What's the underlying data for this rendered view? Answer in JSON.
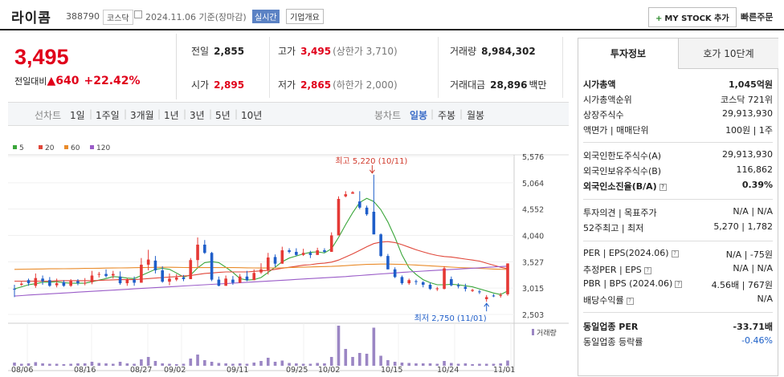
{
  "header": {
    "name": "라이콤",
    "code": "388790",
    "market": "코스닥",
    "date": "2024.11.06 기준(장마감)",
    "realtime": "실시간",
    "overview": "기업개요",
    "mystock": "MY STOCK 추가",
    "mystock_plus": "+",
    "quick_order": "빠른주문"
  },
  "price": {
    "current": "3,495",
    "change_label": "전일대비",
    "change_arrow": "▲",
    "change": "640",
    "change_pct": "+22.42%"
  },
  "quote": {
    "prev_label": "전일",
    "prev": "2,855",
    "high_label": "고가",
    "high": "3,495",
    "high_limit": "(상한가 3,710)",
    "volume_label": "거래량",
    "volume": "8,984,302",
    "open_label": "시가",
    "open": "2,895",
    "low_label": "저가",
    "low": "2,865",
    "low_limit": "(하한가 2,000)",
    "amount_label": "거래대금",
    "amount": "28,896",
    "amount_unit": "백만"
  },
  "period_tabs": {
    "label": "선차트",
    "items": [
      "1일",
      "1주일",
      "3개월",
      "1년",
      "3년",
      "5년",
      "10년"
    ]
  },
  "candle_tabs": {
    "label": "봉차트",
    "items": [
      "일봉",
      "주봉",
      "월봉"
    ],
    "selected": "일봉"
  },
  "legend": [
    {
      "name": "5",
      "color": "#3aa63a"
    },
    {
      "name": "20",
      "color": "#e0473a"
    },
    {
      "name": "60",
      "color": "#e98b2a"
    },
    {
      "name": "120",
      "color": "#9a5cc8"
    }
  ],
  "chart_data": {
    "type": "candlestick",
    "ylim": [
      2503,
      5576
    ],
    "yticks": [
      "5,576",
      "5,064",
      "4,552",
      "4,040",
      "3,527",
      "3,015",
      "2,503"
    ],
    "xticks": [
      "08/06",
      "08/16",
      "08/27",
      "09/02",
      "09/11",
      "09/25",
      "10/02",
      "10/15",
      "10/24",
      "11/01"
    ],
    "annotations": {
      "high": "최고 5,220 (10/11)",
      "low": "최저 2,750 (11/01)"
    },
    "volume_label": "거래량",
    "candles": [
      [
        3000,
        2990,
        2840,
        3080
      ],
      [
        3080,
        3100,
        3060,
        3140
      ],
      [
        3170,
        3110,
        3060,
        3200
      ],
      [
        3060,
        3210,
        3020,
        3300
      ],
      [
        3200,
        3150,
        3080,
        3260
      ],
      [
        3170,
        3060,
        3040,
        3230
      ],
      [
        3070,
        3110,
        3030,
        3200
      ],
      [
        3130,
        3060,
        3040,
        3170
      ],
      [
        3060,
        3150,
        3040,
        3190
      ],
      [
        3150,
        3110,
        3070,
        3190
      ],
      [
        3110,
        3120,
        3070,
        3210
      ],
      [
        3130,
        3260,
        3090,
        3350
      ],
      [
        3280,
        3290,
        3220,
        3330
      ],
      [
        3290,
        3250,
        3220,
        3380
      ],
      [
        3260,
        3290,
        3200,
        3350
      ],
      [
        3240,
        3110,
        3080,
        3340
      ],
      [
        3110,
        3180,
        3060,
        3210
      ],
      [
        3180,
        3120,
        3060,
        3240
      ],
      [
        3120,
        3470,
        3120,
        3600
      ],
      [
        3470,
        3570,
        3360,
        3760
      ],
      [
        3550,
        3360,
        3300,
        3640
      ],
      [
        3360,
        3140,
        3120,
        3440
      ],
      [
        3140,
        3200,
        3070,
        3300
      ],
      [
        3180,
        3220,
        3150,
        3290
      ],
      [
        3220,
        3190,
        3150,
        3270
      ],
      [
        3190,
        3560,
        3190,
        3600
      ],
      [
        3560,
        3860,
        3420,
        4000
      ],
      [
        3860,
        3700,
        3680,
        3950
      ],
      [
        3700,
        3180,
        3150,
        3720
      ],
      [
        3180,
        3060,
        3050,
        3240
      ],
      [
        3060,
        3200,
        3060,
        3260
      ],
      [
        3180,
        3120,
        3080,
        3250
      ],
      [
        3120,
        3240,
        3110,
        3290
      ],
      [
        3240,
        3170,
        3150,
        3350
      ],
      [
        3170,
        3310,
        3170,
        3380
      ],
      [
        3320,
        3380,
        3290,
        3500
      ],
      [
        3370,
        3610,
        3280,
        3700
      ],
      [
        3620,
        3490,
        3430,
        3670
      ],
      [
        3490,
        3750,
        3490,
        3820
      ],
      [
        3750,
        3720,
        3690,
        3790
      ],
      [
        3720,
        3660,
        3640,
        3790
      ],
      [
        3660,
        3700,
        3640,
        3780
      ],
      [
        3700,
        3660,
        3600,
        3740
      ],
      [
        3660,
        3750,
        3660,
        3800
      ],
      [
        3750,
        3720,
        3700,
        3790
      ],
      [
        3720,
        4040,
        3720,
        4100
      ],
      [
        4040,
        4750,
        4040,
        4800
      ],
      [
        4800,
        4840,
        4780,
        4900
      ],
      [
        4850,
        4880,
        4850,
        4900
      ],
      [
        4700,
        4580,
        4550,
        4900
      ],
      [
        4580,
        4450,
        4420,
        4620
      ],
      [
        4500,
        4060,
        4060,
        5220
      ],
      [
        4060,
        3640,
        3620,
        4080
      ],
      [
        3640,
        3380,
        3380,
        3680
      ],
      [
        3380,
        3230,
        3210,
        3420
      ],
      [
        3230,
        3110,
        3080,
        3260
      ],
      [
        3110,
        3170,
        3080,
        3200
      ],
      [
        3150,
        3140,
        3080,
        3180
      ],
      [
        3130,
        3080,
        3030,
        3150
      ],
      [
        3080,
        3000,
        2980,
        3120
      ],
      [
        3000,
        3010,
        2960,
        3040
      ],
      [
        3000,
        3400,
        2990,
        3440
      ],
      [
        3190,
        3070,
        3050,
        3240
      ],
      [
        3070,
        3050,
        3010,
        3110
      ],
      [
        3040,
        3000,
        2950,
        3100
      ],
      [
        2960,
        2980,
        2940,
        3000
      ],
      [
        2950,
        2940,
        2900,
        2980
      ],
      [
        2800,
        2840,
        2750,
        2880
      ],
      [
        2870,
        2860,
        2840,
        2900
      ],
      [
        2870,
        2880,
        2830,
        2920
      ],
      [
        2895,
        3495,
        2865,
        3495
      ]
    ],
    "volumes": [
      0.08,
      0.05,
      0.06,
      0.09,
      0.06,
      0.05,
      0.05,
      0.04,
      0.05,
      0.06,
      0.06,
      0.1,
      0.07,
      0.06,
      0.05,
      0.1,
      0.06,
      0.05,
      0.16,
      0.22,
      0.12,
      0.06,
      0.05,
      0.04,
      0.05,
      0.18,
      0.28,
      0.14,
      0.1,
      0.07,
      0.06,
      0.05,
      0.06,
      0.05,
      0.08,
      0.12,
      0.2,
      0.1,
      0.13,
      0.07,
      0.06,
      0.05,
      0.05,
      0.07,
      0.06,
      0.22,
      1.0,
      0.42,
      0.22,
      0.32,
      0.3,
      0.95,
      0.25,
      0.14,
      0.1,
      0.08,
      0.07,
      0.06,
      0.06,
      0.06,
      0.05,
      0.12,
      0.07,
      0.05,
      0.06,
      0.04,
      0.05,
      0.05,
      0.05,
      0.06,
      0.13
    ],
    "ma": {
      "5": [
        3000,
        3040,
        3080,
        3100,
        3130,
        3130,
        3140,
        3120,
        3110,
        3110,
        3110,
        3140,
        3170,
        3200,
        3240,
        3230,
        3210,
        3200,
        3260,
        3320,
        3380,
        3400,
        3380,
        3310,
        3230,
        3270,
        3410,
        3510,
        3530,
        3510,
        3420,
        3320,
        3200,
        3170,
        3180,
        3220,
        3320,
        3420,
        3530,
        3600,
        3640,
        3680,
        3710,
        3720,
        3700,
        3780,
        4000,
        4250,
        4480,
        4680,
        4760,
        4700,
        4540,
        4300,
        4000,
        3660,
        3410,
        3280,
        3180,
        3120,
        3080,
        3080,
        3090,
        3080,
        3060,
        3040,
        3000,
        2960,
        2920,
        2890,
        2960
      ],
      "20": [
        3150,
        3150,
        3150,
        3150,
        3150,
        3150,
        3160,
        3160,
        3160,
        3160,
        3160,
        3160,
        3165,
        3170,
        3175,
        3180,
        3180,
        3180,
        3190,
        3200,
        3210,
        3220,
        3230,
        3240,
        3250,
        3260,
        3280,
        3300,
        3310,
        3320,
        3330,
        3330,
        3330,
        3330,
        3340,
        3350,
        3360,
        3380,
        3400,
        3420,
        3440,
        3460,
        3470,
        3490,
        3500,
        3520,
        3560,
        3620,
        3680,
        3750,
        3820,
        3880,
        3910,
        3920,
        3900,
        3860,
        3810,
        3760,
        3720,
        3680,
        3650,
        3630,
        3620,
        3600,
        3580,
        3560,
        3540,
        3500,
        3460,
        3420,
        3390
      ],
      "60": [
        3380,
        3382,
        3384,
        3386,
        3388,
        3390,
        3390,
        3392,
        3394,
        3396,
        3398,
        3400,
        3402,
        3404,
        3406,
        3408,
        3410,
        3412,
        3414,
        3416,
        3418,
        3420,
        3420,
        3418,
        3416,
        3414,
        3414,
        3414,
        3414,
        3414,
        3414,
        3414,
        3412,
        3410,
        3408,
        3406,
        3406,
        3408,
        3410,
        3414,
        3418,
        3422,
        3426,
        3430,
        3434,
        3438,
        3444,
        3452,
        3460,
        3468,
        3476,
        3480,
        3482,
        3482,
        3480,
        3476,
        3470,
        3464,
        3456,
        3448,
        3440,
        3432,
        3424,
        3416,
        3410,
        3404,
        3398,
        3392,
        3386,
        3382,
        3380
      ],
      "120": [
        2860,
        2870,
        2880,
        2888,
        2896,
        2904,
        2912,
        2920,
        2928,
        2936,
        2944,
        2952,
        2960,
        2968,
        2976,
        2984,
        2992,
        3000,
        3008,
        3016,
        3024,
        3032,
        3040,
        3048,
        3056,
        3064,
        3072,
        3080,
        3088,
        3096,
        3104,
        3112,
        3120,
        3128,
        3136,
        3144,
        3152,
        3160,
        3168,
        3176,
        3184,
        3192,
        3200,
        3208,
        3216,
        3224,
        3232,
        3240,
        3250,
        3260,
        3270,
        3280,
        3290,
        3300,
        3310,
        3320,
        3330,
        3338,
        3346,
        3354,
        3362,
        3370,
        3378,
        3386,
        3394,
        3402,
        3410,
        3418,
        3426,
        3434,
        3442
      ]
    }
  },
  "info": {
    "tab_active": "투자정보",
    "tab_other": "호가 10단계",
    "rows": [
      {
        "k": "시가총액",
        "v": "1,045억원",
        "bold": true
      },
      {
        "k": "시가총액순위",
        "v": "코스닥 721위"
      },
      {
        "k": "상장주식수",
        "v": "29,913,930"
      },
      {
        "k": "액면가 | 매매단위",
        "v": "100원 | 1주"
      },
      {
        "k": "외국인한도주식수(A)",
        "v": "29,913,930"
      },
      {
        "k": "외국인보유주식수(B)",
        "v": "116,862"
      },
      {
        "k": "외국인소진율(B/A)",
        "v": "0.39%",
        "bold": true
      },
      {
        "k": "투자의견 | 목표주가",
        "v": "N/A | N/A"
      },
      {
        "k": "52주최고 | 최저",
        "v": "5,270 | 1,782"
      },
      {
        "k": "PER | EPS(2024.06)",
        "v": "N/A | -75원"
      },
      {
        "k": "추정PER | EPS",
        "v": "N/A | N/A"
      },
      {
        "k": "PBR | BPS (2024.06)",
        "v": "4.56배 | 767원"
      },
      {
        "k": "배당수익률",
        "v": "N/A"
      },
      {
        "k": "동일업종 PER",
        "v": "-33.71배",
        "bold": true
      },
      {
        "k": "동일업종 등락률",
        "v": "-0.46%"
      }
    ]
  }
}
